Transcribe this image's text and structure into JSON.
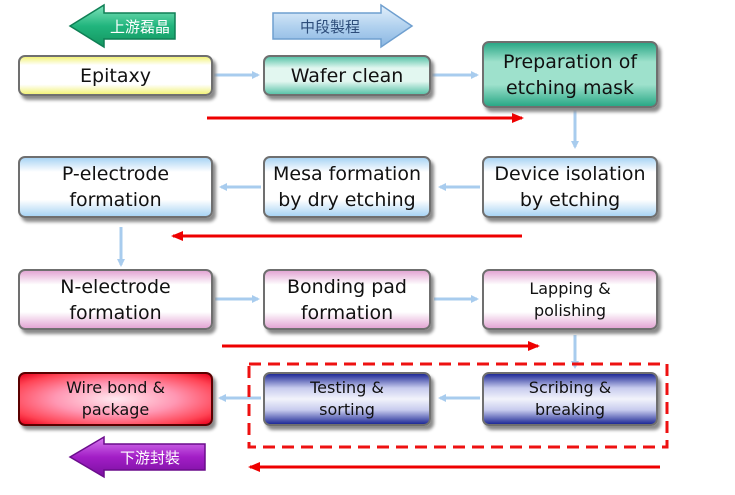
{
  "tags": {
    "upstream": "上游磊晶",
    "midstream": "中段製程",
    "downstream": "下游封裝"
  },
  "steps": {
    "epitaxy": "Epitaxy",
    "wafer_clean": "Wafer clean",
    "etching_mask": "Preparation of\netching mask",
    "device_isolation": "Device isolation\nby etching",
    "mesa_formation": "Mesa formation\nby dry etching",
    "p_electrode": "P-electrode\nformation",
    "n_electrode": "N-electrode\nformation",
    "bonding_pad": "Bonding pad\nformation",
    "lapping": "Lapping &\npolishing",
    "scribing": "Scribing &\nbreaking",
    "testing": "Testing &\nsorting",
    "wire_bond": "Wire bond &\npackage"
  },
  "colors": {
    "flow_arrow": "#a8ccee",
    "direction_arrow": "#ee0000",
    "dashed_frame": "#ee1111",
    "upstream_tag": "#2fbf8a",
    "midstream_tag": "#b9d7f2",
    "downstream_tag": "#a21ec6"
  }
}
